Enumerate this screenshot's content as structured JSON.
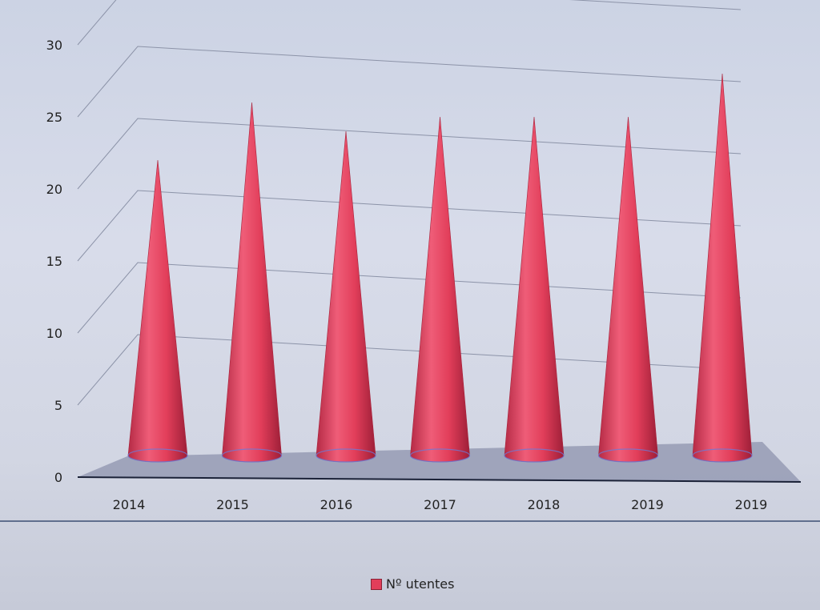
{
  "chart_data": {
    "type": "bar",
    "bar_shape": "3d-cone",
    "categories": [
      "2014",
      "2015",
      "2016",
      "2017",
      "2018",
      "2019",
      "2019"
    ],
    "series": [
      {
        "name": "Nº utentes",
        "values": [
          19,
          23,
          21,
          22,
          22,
          22,
          25
        ]
      }
    ],
    "y_ticks": [
      "0",
      "5",
      "10",
      "15",
      "20",
      "25",
      "30"
    ],
    "ylim": [
      0,
      30
    ],
    "title": "",
    "xlabel": "",
    "ylabel": "",
    "grid": true,
    "legend_position": "bottom",
    "colors": {
      "series": "#e23e5a",
      "series_dark": "#a8243c",
      "floor": "#8e93ad"
    }
  },
  "legend": {
    "label": "Nº utentes"
  }
}
